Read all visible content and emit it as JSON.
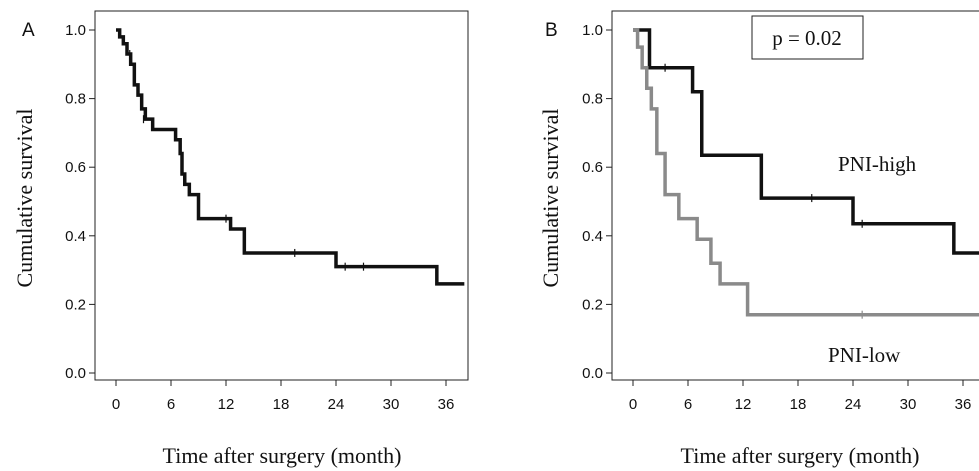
{
  "chart_data": [
    {
      "type": "line",
      "step": true,
      "panel_label": "A",
      "xlabel": "Time after surgery (month)",
      "ylabel": "Cumulative survival",
      "xlim": [
        -1.5,
        38
      ],
      "ylim": [
        -0.05,
        1.06
      ],
      "xticks": [
        0,
        6,
        12,
        18,
        24,
        30,
        36
      ],
      "yticks": [
        0.0,
        0.2,
        0.4,
        0.6,
        0.8,
        1.0
      ],
      "grid": false,
      "series": [
        {
          "color": "#111111",
          "x": [
            0,
            0.4,
            0.8,
            1.2,
            1.6,
            2.0,
            2.4,
            2.8,
            3.2,
            4.0,
            6.5,
            7.0,
            7.2,
            7.5,
            8.0,
            9.0,
            12.5,
            14.0,
            24.0,
            35.0,
            38.0
          ],
          "y": [
            1.0,
            0.98,
            0.96,
            0.93,
            0.9,
            0.84,
            0.81,
            0.77,
            0.74,
            0.71,
            0.68,
            0.64,
            0.58,
            0.55,
            0.52,
            0.45,
            0.42,
            0.35,
            0.31,
            0.26,
            0.26
          ],
          "censored": [
            [
              1.5,
              0.93
            ],
            [
              3.0,
              0.74
            ],
            [
              12.0,
              0.45
            ],
            [
              19.5,
              0.35
            ],
            [
              25.0,
              0.31
            ],
            [
              27.0,
              0.31
            ]
          ]
        }
      ]
    },
    {
      "type": "line",
      "step": true,
      "panel_label": "B",
      "xlabel": "Time after surgery (month)",
      "ylabel": "Cumulative survival",
      "xlim": [
        -1.5,
        38
      ],
      "ylim": [
        -0.05,
        1.06
      ],
      "xticks": [
        0,
        6,
        12,
        18,
        24,
        30,
        36
      ],
      "yticks": [
        0.0,
        0.2,
        0.4,
        0.6,
        0.8,
        1.0
      ],
      "grid": false,
      "annotations": [
        {
          "text": "p = 0.02",
          "x": 8.5,
          "y": 0.95,
          "boxed": true
        },
        {
          "text": "PNI-high",
          "x": 22,
          "y": 0.6
        },
        {
          "text": "PNI-low",
          "x": 22,
          "y": 0.04
        }
      ],
      "series": [
        {
          "name": "PNI-high",
          "color": "#111111",
          "x": [
            0,
            1.8,
            6.5,
            7.5,
            14.0,
            24.0,
            35.0,
            38.0
          ],
          "y": [
            1.0,
            0.89,
            0.82,
            0.635,
            0.51,
            0.435,
            0.35,
            0.35
          ],
          "censored": [
            [
              3.5,
              0.89
            ],
            [
              19.5,
              0.51
            ],
            [
              25.0,
              0.435
            ]
          ]
        },
        {
          "name": "PNI-low",
          "color": "#8a8a8a",
          "x": [
            0,
            0.5,
            1.0,
            1.5,
            2.0,
            2.6,
            3.5,
            5.0,
            7.0,
            8.5,
            9.5,
            12.5,
            38.0
          ],
          "y": [
            1.0,
            0.95,
            0.89,
            0.83,
            0.77,
            0.64,
            0.52,
            0.45,
            0.39,
            0.32,
            0.26,
            0.17,
            0.17
          ],
          "censored": [
            [
              25.0,
              0.17
            ]
          ]
        }
      ]
    }
  ]
}
